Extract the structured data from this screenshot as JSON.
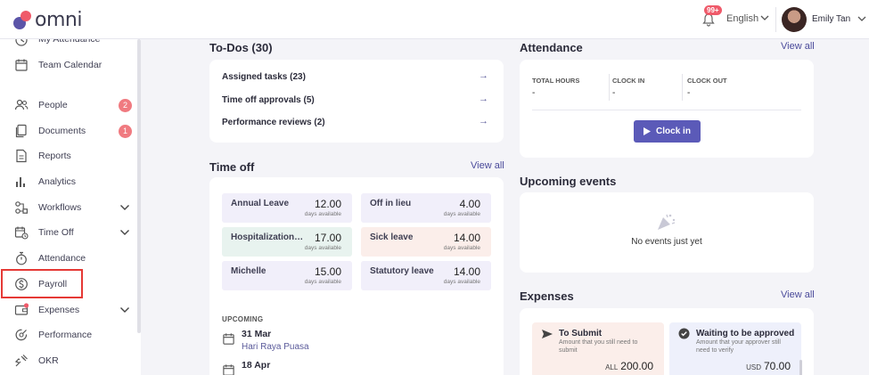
{
  "header": {
    "logo_text": "omni",
    "notification_badge": "99+",
    "language": "English",
    "user_name": "Emily Tan"
  },
  "sidebar": {
    "items": [
      {
        "label": "My Attendance",
        "icon": "clock-icon"
      },
      {
        "label": "Team Calendar",
        "icon": "calendar-icon"
      },
      {
        "label": "People",
        "icon": "people-icon",
        "badge": "2"
      },
      {
        "label": "Documents",
        "icon": "documents-icon",
        "badge": "1"
      },
      {
        "label": "Reports",
        "icon": "report-icon"
      },
      {
        "label": "Analytics",
        "icon": "bar-chart-icon"
      },
      {
        "label": "Workflows",
        "icon": "workflow-icon"
      },
      {
        "label": "Time Off",
        "icon": "calendar-clock-icon"
      },
      {
        "label": "Attendance",
        "icon": "stopwatch-icon"
      },
      {
        "label": "Payroll",
        "icon": "dollar-circle-icon"
      },
      {
        "label": "Expenses",
        "icon": "wallet-icon"
      },
      {
        "label": "Performance",
        "icon": "performance-icon"
      },
      {
        "label": "OKR",
        "icon": "okr-icon"
      }
    ]
  },
  "todos": {
    "title": "To-Dos (30)",
    "rows": [
      {
        "label": "Assigned tasks (23)"
      },
      {
        "label": "Time off approvals (5)"
      },
      {
        "label": "Performance reviews (2)"
      }
    ]
  },
  "timeoff": {
    "title": "Time off",
    "view_all": "View all",
    "tiles": [
      {
        "name": "Annual Leave",
        "value": "12.00",
        "sub": "days available",
        "color": "#f1effa"
      },
      {
        "name": "Off in lieu",
        "value": "4.00",
        "sub": "days available",
        "color": "#f1effa"
      },
      {
        "name": "Hospitalization ...",
        "value": "17.00",
        "sub": "days available",
        "color": "#e8f3ef"
      },
      {
        "name": "Sick leave",
        "value": "14.00",
        "sub": "days available",
        "color": "#fbeeea"
      },
      {
        "name": "Michelle",
        "value": "15.00",
        "sub": "days available",
        "color": "#f1effa"
      },
      {
        "name": "Statutory leave",
        "value": "14.00",
        "sub": "days available",
        "color": "#f1effa"
      }
    ],
    "upcoming_label": "UPCOMING",
    "upcoming": [
      {
        "date": "31 Mar",
        "name": "Hari Raya Puasa"
      },
      {
        "date": "18 Apr",
        "name": ""
      }
    ]
  },
  "attendance": {
    "title": "Attendance",
    "view_all": "View all",
    "columns": [
      {
        "label": "TOTAL HOURS",
        "value": "-"
      },
      {
        "label": "CLOCK IN",
        "value": "-"
      },
      {
        "label": "CLOCK OUT",
        "value": "-"
      }
    ],
    "clock_in_label": "Clock in"
  },
  "events": {
    "title": "Upcoming events",
    "empty_text": "No events just yet"
  },
  "expenses": {
    "title": "Expenses",
    "view_all": "View all",
    "tiles": [
      {
        "title": "To Submit",
        "desc": "Amount that you still need to submit",
        "currency": "ALL",
        "amount": "200.00",
        "color": "#fbeeea",
        "icon": "send-icon"
      },
      {
        "title": "Waiting to be approved",
        "desc": "Amount that your approver still need to verify",
        "currency": "USD",
        "amount": "70.00",
        "color": "#eef0fb",
        "icon": "check-circle-icon"
      }
    ]
  }
}
